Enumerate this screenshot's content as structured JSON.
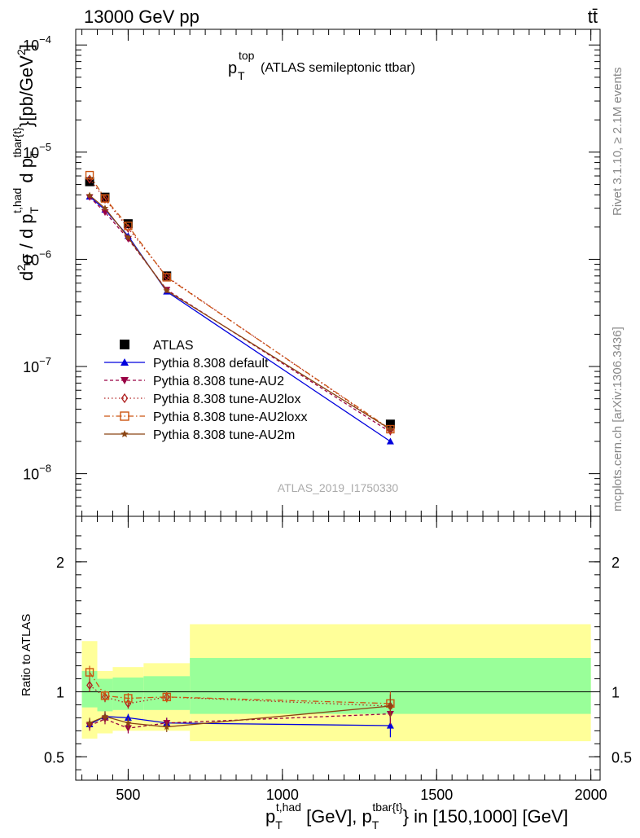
{
  "header": {
    "energy_label": "13000 GeV pp",
    "process_label": "tt̄"
  },
  "side_labels": {
    "rivet": "Rivet 3.1.10, ≥ 2.1M events",
    "mcplots": "mcplots.cern.ch [arXiv:1306.3436]"
  },
  "analysis_id": "ATLAS_2019_I1750330",
  "plot_title": {
    "main": "p",
    "sub": "T",
    "sup": "top",
    "rest": "(ATLAS semileptonic ttbar)"
  },
  "axis_labels": {
    "y_main": "d²σ / d p_T^{t,had} d p_T^{tbar{t}} [pb/GeV²]",
    "y_ratio": "Ratio to ATLAS",
    "x": "p_T^{t,had} [GeV], p_T^{tbar{t}} in [150,1000] [GeV]"
  },
  "chart_data": [
    {
      "type": "line",
      "panel": "main",
      "y_scale": "log",
      "xlim": [
        330,
        2030
      ],
      "ylim": [
        4e-09,
        0.00014
      ],
      "y_ticks": [
        {
          "value": 1e-08,
          "label": "10",
          "exp": "−8"
        },
        {
          "value": 1e-07,
          "label": "10",
          "exp": "−7"
        },
        {
          "value": 1e-06,
          "label": "10",
          "exp": "−6"
        },
        {
          "value": 1e-05,
          "label": "10",
          "exp": "−5"
        },
        {
          "value": 0.0001,
          "label": "10",
          "exp": "−4"
        }
      ],
      "legend_position": "lower-left",
      "series": [
        {
          "name": "ATLAS",
          "marker": "square",
          "color": "#000000",
          "dash": "",
          "points": [
            [
              375,
              5.3e-06
            ],
            [
              425,
              3.8e-06
            ],
            [
              500,
              2.15e-06
            ],
            [
              625,
              7e-07
            ],
            [
              1350,
              2.9e-08
            ]
          ]
        },
        {
          "name": "Pythia 8.308 default",
          "marker": "triangle-up",
          "color": "#0000dd",
          "dash": "",
          "points": [
            [
              375,
              3.85e-06
            ],
            [
              425,
              2.9e-06
            ],
            [
              500,
              1.65e-06
            ],
            [
              625,
              5e-07
            ],
            [
              1350,
              2e-08
            ]
          ]
        },
        {
          "name": "Pythia 8.308 tune-AU2",
          "marker": "triangle-down",
          "color": "#990044",
          "dash": "4,3",
          "points": [
            [
              375,
              3.8e-06
            ],
            [
              425,
              2.75e-06
            ],
            [
              500,
              1.55e-06
            ],
            [
              625,
              5.2e-07
            ],
            [
              1350,
              2.45e-08
            ]
          ]
        },
        {
          "name": "Pythia 8.308 tune-AU2lox",
          "marker": "diamond",
          "color": "#b02020",
          "dash": "1.5,3",
          "points": [
            [
              375,
              5.6e-06
            ],
            [
              425,
              3.65e-06
            ],
            [
              500,
              1.95e-06
            ],
            [
              625,
              6.9e-07
            ],
            [
              1350,
              2.55e-08
            ]
          ]
        },
        {
          "name": "Pythia 8.308 tune-AU2loxx",
          "marker": "open-square",
          "color": "#cc5511",
          "dash": "7,3,1.5,3",
          "points": [
            [
              375,
              6.1e-06
            ],
            [
              425,
              3.7e-06
            ],
            [
              500,
              2.05e-06
            ],
            [
              625,
              6.8e-07
            ],
            [
              1350,
              2.6e-08
            ]
          ]
        },
        {
          "name": "Pythia 8.308 tune-AU2m",
          "marker": "star",
          "color": "#8b4513",
          "dash": "",
          "points": [
            [
              375,
              3.95e-06
            ],
            [
              425,
              3e-06
            ],
            [
              500,
              1.6e-06
            ],
            [
              625,
              5.1e-07
            ],
            [
              1350,
              2.6e-08
            ]
          ]
        }
      ]
    },
    {
      "type": "line",
      "panel": "ratio",
      "xlim": [
        330,
        2030
      ],
      "ylim": [
        0.32,
        2.35
      ],
      "y_ticks": [
        {
          "value": 0.5,
          "label": "0.5"
        },
        {
          "value": 1,
          "label": "1"
        },
        {
          "value": 2,
          "label": "2"
        }
      ],
      "x_ticks": [
        {
          "value": 500,
          "label": "500"
        },
        {
          "value": 1000,
          "label": "1000"
        },
        {
          "value": 1500,
          "label": "1500"
        },
        {
          "value": 2000,
          "label": "2000"
        }
      ],
      "uncertainty_bands": [
        {
          "x": [
            350,
            400
          ],
          "outer": [
            0.64,
            1.39
          ],
          "inner": [
            0.88,
            1.16
          ]
        },
        {
          "x": [
            400,
            450
          ],
          "outer": [
            0.68,
            1.16
          ],
          "inner": [
            0.85,
            1.1
          ]
        },
        {
          "x": [
            450,
            550
          ],
          "outer": [
            0.7,
            1.19
          ],
          "inner": [
            0.86,
            1.11
          ]
        },
        {
          "x": [
            550,
            700
          ],
          "outer": [
            0.7,
            1.22
          ],
          "inner": [
            0.86,
            1.12
          ]
        },
        {
          "x": [
            700,
            2000
          ],
          "outer": [
            0.62,
            1.52
          ],
          "inner": [
            0.83,
            1.26
          ]
        }
      ],
      "series": [
        {
          "name": "Pythia 8.308 default",
          "points": [
            [
              375,
              0.75
            ],
            [
              425,
              0.81
            ],
            [
              500,
              0.8
            ],
            [
              625,
              0.76
            ],
            [
              1350,
              0.74
            ]
          ],
          "err": [
            0.04,
            0.04,
            0.03,
            0.04,
            0.09
          ]
        },
        {
          "name": "Pythia 8.308 tune-AU2",
          "points": [
            [
              375,
              0.74
            ],
            [
              425,
              0.79
            ],
            [
              500,
              0.72
            ],
            [
              625,
              0.76
            ],
            [
              1350,
              0.83
            ]
          ],
          "err": [
            0.04,
            0.04,
            0.04,
            0.04,
            0.08
          ]
        },
        {
          "name": "Pythia 8.308 tune-AU2lox",
          "points": [
            [
              375,
              1.05
            ],
            [
              425,
              0.96
            ],
            [
              500,
              0.91
            ],
            [
              625,
              0.96
            ],
            [
              1350,
              0.89
            ]
          ],
          "err": [
            0.05,
            0.04,
            0.04,
            0.04,
            0.09
          ]
        },
        {
          "name": "Pythia 8.308 tune-AU2loxx",
          "points": [
            [
              375,
              1.15
            ],
            [
              425,
              0.97
            ],
            [
              500,
              0.95
            ],
            [
              625,
              0.96
            ],
            [
              1350,
              0.91
            ]
          ],
          "err": [
            0.05,
            0.04,
            0.04,
            0.04,
            0.09
          ]
        },
        {
          "name": "Pythia 8.308 tune-AU2m",
          "points": [
            [
              375,
              0.76
            ],
            [
              425,
              0.81
            ],
            [
              500,
              0.76
            ],
            [
              625,
              0.73
            ],
            [
              1350,
              0.89
            ]
          ],
          "err": [
            0.04,
            0.04,
            0.04,
            0.04,
            0.09
          ]
        }
      ]
    }
  ]
}
